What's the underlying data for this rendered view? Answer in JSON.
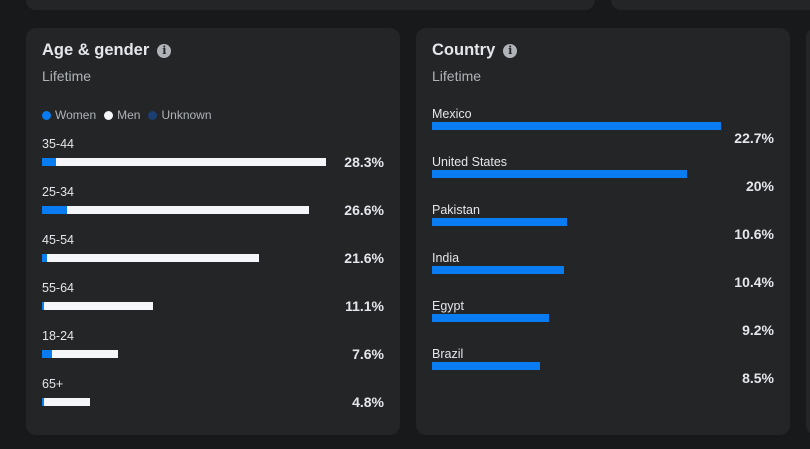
{
  "colors": {
    "women": "#0a7cf1",
    "men": "#f4f6fa",
    "unknown": "#1b3f73",
    "country_bar": "#0a7cf1"
  },
  "age_gender": {
    "title": "Age & gender",
    "subtitle": "Lifetime",
    "info_icon": "info-icon",
    "legend": [
      {
        "key": "women",
        "label": "Women"
      },
      {
        "key": "men",
        "label": "Men"
      },
      {
        "key": "unknown",
        "label": "Unknown"
      }
    ],
    "rows": [
      {
        "label": "35-44",
        "value": "28.3%",
        "total": 28.3,
        "women": 1.4
      },
      {
        "label": "25-34",
        "value": "26.6%",
        "total": 26.6,
        "women": 2.5
      },
      {
        "label": "45-54",
        "value": "21.6%",
        "total": 21.6,
        "women": 0.5
      },
      {
        "label": "55-64",
        "value": "11.1%",
        "total": 11.1,
        "women": 0.2
      },
      {
        "label": "18-24",
        "value": "7.6%",
        "total": 7.6,
        "women": 1.0
      },
      {
        "label": "65+",
        "value": "4.8%",
        "total": 4.8,
        "women": 0.2
      }
    ]
  },
  "country": {
    "title": "Country",
    "subtitle": "Lifetime",
    "info_icon": "info-icon",
    "rows": [
      {
        "label": "Mexico",
        "value": "22.7%",
        "pct": 22.7
      },
      {
        "label": "United States",
        "value": "20%",
        "pct": 20
      },
      {
        "label": "Pakistan",
        "value": "10.6%",
        "pct": 10.6
      },
      {
        "label": "India",
        "value": "10.4%",
        "pct": 10.4
      },
      {
        "label": "Egypt",
        "value": "9.2%",
        "pct": 9.2
      },
      {
        "label": "Brazil",
        "value": "8.5%",
        "pct": 8.5
      }
    ]
  }
}
